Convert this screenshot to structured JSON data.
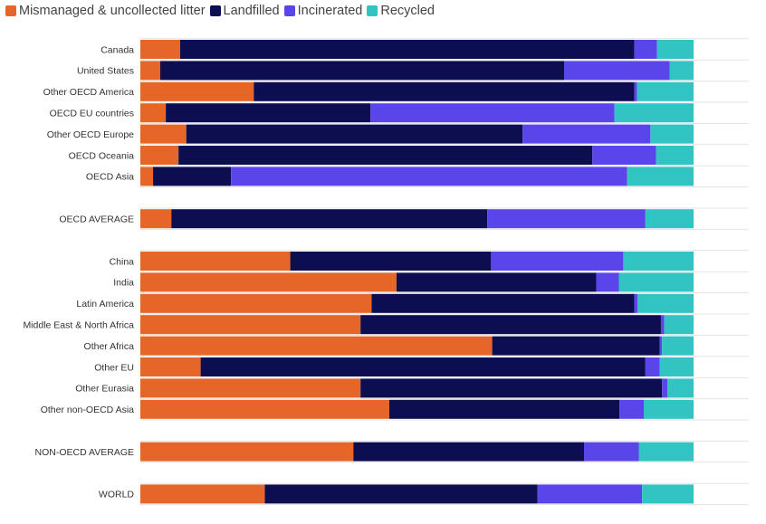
{
  "chart_data": {
    "type": "bar",
    "orientation": "horizontal",
    "stacked": true,
    "normalized": true,
    "unit": "percent",
    "xlim": [
      0,
      100
    ],
    "legend": [
      {
        "name": "Mismanaged & uncollected litter",
        "color": "#e6662a"
      },
      {
        "name": "Landfilled",
        "color": "#0d0d52"
      },
      {
        "name": "Incinerated",
        "color": "#5a45ea"
      },
      {
        "name": "Recycled",
        "color": "#32c3c3"
      }
    ],
    "groups": [
      {
        "rows": [
          {
            "label": "Canada",
            "values": [
              7.2,
              82.1,
              4.1,
              6.6
            ]
          },
          {
            "label": "United States",
            "values": [
              3.6,
              73.0,
              19.1,
              4.3
            ]
          },
          {
            "label": "Other OECD America",
            "values": [
              20.5,
              68.8,
              0.5,
              10.2
            ]
          },
          {
            "label": "OECD EU countries",
            "values": [
              4.6,
              37.0,
              44.1,
              14.3
            ]
          },
          {
            "label": "Other OECD Europe",
            "values": [
              8.3,
              60.8,
              23.1,
              7.8
            ]
          },
          {
            "label": "OECD Oceania",
            "values": [
              6.9,
              74.8,
              11.5,
              6.8
            ]
          },
          {
            "label": "OECD Asia",
            "values": [
              2.3,
              14.1,
              71.6,
              12.0
            ]
          }
        ]
      },
      {
        "rows": [
          {
            "label": "OECD AVERAGE",
            "values": [
              5.6,
              57.1,
              28.6,
              8.7
            ]
          }
        ]
      },
      {
        "rows": [
          {
            "label": "China",
            "values": [
              27.1,
              36.3,
              23.9,
              12.7
            ]
          },
          {
            "label": "India",
            "values": [
              46.3,
              36.1,
              4.1,
              13.5
            ]
          },
          {
            "label": "Latin America",
            "values": [
              41.8,
              47.5,
              0.6,
              10.1
            ]
          },
          {
            "label": "Middle East & North Africa",
            "values": [
              39.8,
              54.3,
              0.6,
              5.3
            ]
          },
          {
            "label": "Other Africa",
            "values": [
              63.6,
              30.3,
              0.4,
              5.7
            ]
          },
          {
            "label": "Other EU",
            "values": [
              10.9,
              80.4,
              2.6,
              6.1
            ]
          },
          {
            "label": "Other Eurasia",
            "values": [
              39.8,
              54.5,
              1.0,
              4.7
            ]
          },
          {
            "label": "Other non-OECD Asia",
            "values": [
              45.0,
              41.6,
              4.4,
              9.0
            ]
          }
        ]
      },
      {
        "rows": [
          {
            "label": "NON-OECD AVERAGE",
            "values": [
              38.5,
              41.7,
              9.9,
              9.9
            ]
          }
        ]
      },
      {
        "rows": [
          {
            "label": "WORLD",
            "values": [
              22.5,
              49.3,
              18.9,
              9.3
            ]
          }
        ]
      }
    ]
  }
}
